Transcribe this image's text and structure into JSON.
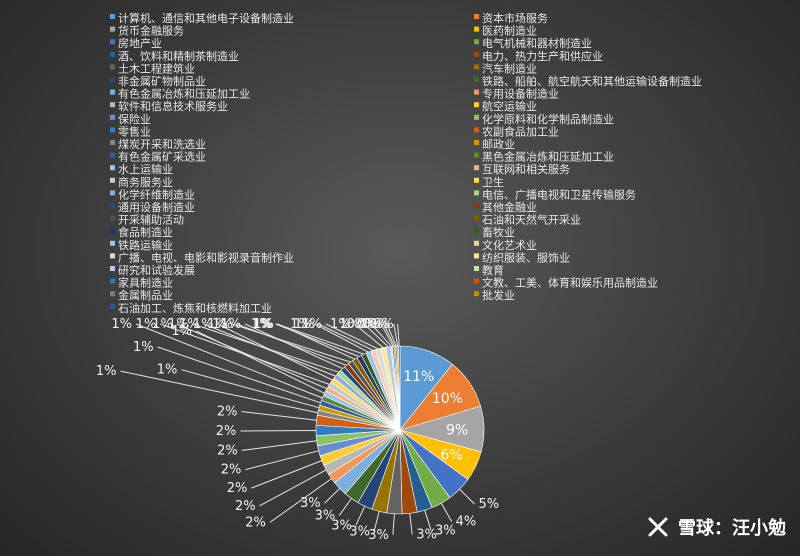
{
  "watermark": {
    "text": "雪球：汪小勉",
    "logo_icon": "snowball-logo-icon"
  },
  "chart_data": {
    "type": "pie",
    "title": "",
    "legend_position": "top",
    "series": [
      {
        "name": "计算机、通信和其他电子设备制造业",
        "value": 11,
        "label": "11%",
        "color": "#5b9bd5"
      },
      {
        "name": "资本市场服务",
        "value": 10,
        "label": "10%",
        "color": "#ed7d31"
      },
      {
        "name": "货币金融服务",
        "value": 9,
        "label": "9%",
        "color": "#a5a5a5"
      },
      {
        "name": "医药制造业",
        "value": 6,
        "label": "6%",
        "color": "#ffc000"
      },
      {
        "name": "房地产业",
        "value": 5,
        "label": "5%",
        "color": "#4472c4"
      },
      {
        "name": "电气机械和器材制造业",
        "value": 4,
        "label": "4%",
        "color": "#70ad47"
      },
      {
        "name": "酒、饮料和精制茶制造业",
        "value": 3,
        "label": "3%",
        "color": "#255e91"
      },
      {
        "name": "电力、热力生产和供应业",
        "value": 3,
        "label": "3%",
        "color": "#9e480e"
      },
      {
        "name": "土木工程建筑业",
        "value": 3,
        "label": "3%",
        "color": "#636363"
      },
      {
        "name": "汽车制造业",
        "value": 3,
        "label": "3%",
        "color": "#997300"
      },
      {
        "name": "非金属矿物制品业",
        "value": 3,
        "label": "3%",
        "color": "#264478"
      },
      {
        "name": "铁路、船舶、航空航天和其他运输设备制造业",
        "value": 3,
        "label": "3%",
        "color": "#43682b"
      },
      {
        "name": "有色金属冶炼和压延加工业",
        "value": 3,
        "label": "3%",
        "color": "#7cafdd"
      },
      {
        "name": "专用设备制造业",
        "value": 2,
        "label": "2%",
        "color": "#f1975a"
      },
      {
        "name": "软件和信息技术服务业",
        "value": 2,
        "label": "2%",
        "color": "#b7b7b7"
      },
      {
        "name": "航空运输业",
        "value": 2,
        "label": "2%",
        "color": "#ffcd33"
      },
      {
        "name": "保险业",
        "value": 2,
        "label": "2%",
        "color": "#698ed0"
      },
      {
        "name": "化学原料和化学制品制造业",
        "value": 2,
        "label": "2%",
        "color": "#8cc168"
      },
      {
        "name": "零售业",
        "value": 2,
        "label": "2%",
        "color": "#327dc2"
      },
      {
        "name": "农副食品加工业",
        "value": 2,
        "label": "2%",
        "color": "#d26012"
      },
      {
        "name": "煤炭开采和洗选业",
        "value": 1,
        "label": "1%",
        "color": "#848484"
      },
      {
        "name": "邮政业",
        "value": 1,
        "label": "1%",
        "color": "#cc9a00"
      },
      {
        "name": "有色金属矿采选业",
        "value": 1,
        "label": "1%",
        "color": "#335aa1"
      },
      {
        "name": "黑色金属冶炼和压延加工业",
        "value": 1,
        "label": "1%",
        "color": "#5a8a39"
      },
      {
        "name": "水上运输业",
        "value": 1,
        "label": "1%",
        "color": "#9dc3e6"
      },
      {
        "name": "互联网和相关服务",
        "value": 1,
        "label": "1%",
        "color": "#f4b183"
      },
      {
        "name": "商务服务业",
        "value": 1,
        "label": "1%",
        "color": "#c9c9c9"
      },
      {
        "name": "卫生",
        "value": 1,
        "label": "1%",
        "color": "#ffd966"
      },
      {
        "name": "化学纤维制造业",
        "value": 1,
        "label": "1%",
        "color": "#8faadc"
      },
      {
        "name": "电信、广播电视和卫星传输服务",
        "value": 1,
        "label": "1%",
        "color": "#a9d18e"
      },
      {
        "name": "通用设备制造业",
        "value": 1,
        "label": "1%",
        "color": "#1f4e79"
      },
      {
        "name": "其他金融业",
        "value": 1,
        "label": "1%",
        "color": "#843c0c"
      },
      {
        "name": "开采辅助活动",
        "value": 1,
        "label": "1%",
        "color": "#525252"
      },
      {
        "name": "石油和天然气开采业",
        "value": 1,
        "label": "1%",
        "color": "#7f6000"
      },
      {
        "name": "食品制造业",
        "value": 1,
        "label": "1%",
        "color": "#203864"
      },
      {
        "name": "畜牧业",
        "value": 1,
        "label": "1%",
        "color": "#385723"
      },
      {
        "name": "铁路运输业",
        "value": 1,
        "label": "1%",
        "color": "#9dc3e6"
      },
      {
        "name": "文化艺术业",
        "value": 1,
        "label": "1%",
        "color": "#f8cbad"
      },
      {
        "name": "广播、电视、电影和影视录音制作业",
        "value": 1,
        "label": "1%",
        "color": "#dbdbdb"
      },
      {
        "name": "纺织服装、服饰业",
        "value": 1,
        "label": "1%",
        "color": "#ffe699"
      },
      {
        "name": "研究和试验发展",
        "value": 1,
        "label": "1%",
        "color": "#b4c7e7"
      },
      {
        "name": "教育",
        "value": 0.3,
        "label": "0%",
        "color": "#c5e0b4"
      },
      {
        "name": "家具制造业",
        "value": 0.3,
        "label": "0%",
        "color": "#2e75b6"
      },
      {
        "name": "文教、工美、体育和娱乐用品制造业",
        "value": 0.3,
        "label": "0%",
        "color": "#c55a11"
      },
      {
        "name": "金属制品业",
        "value": 0.3,
        "label": "0%",
        "color": "#7b7b7b"
      },
      {
        "name": "批发业",
        "value": 0.3,
        "label": "0%",
        "color": "#bf9000"
      },
      {
        "name": "石油加工、炼焦和核燃料加工业",
        "value": 0.3,
        "label": "0%",
        "color": "#2f5597"
      }
    ]
  }
}
